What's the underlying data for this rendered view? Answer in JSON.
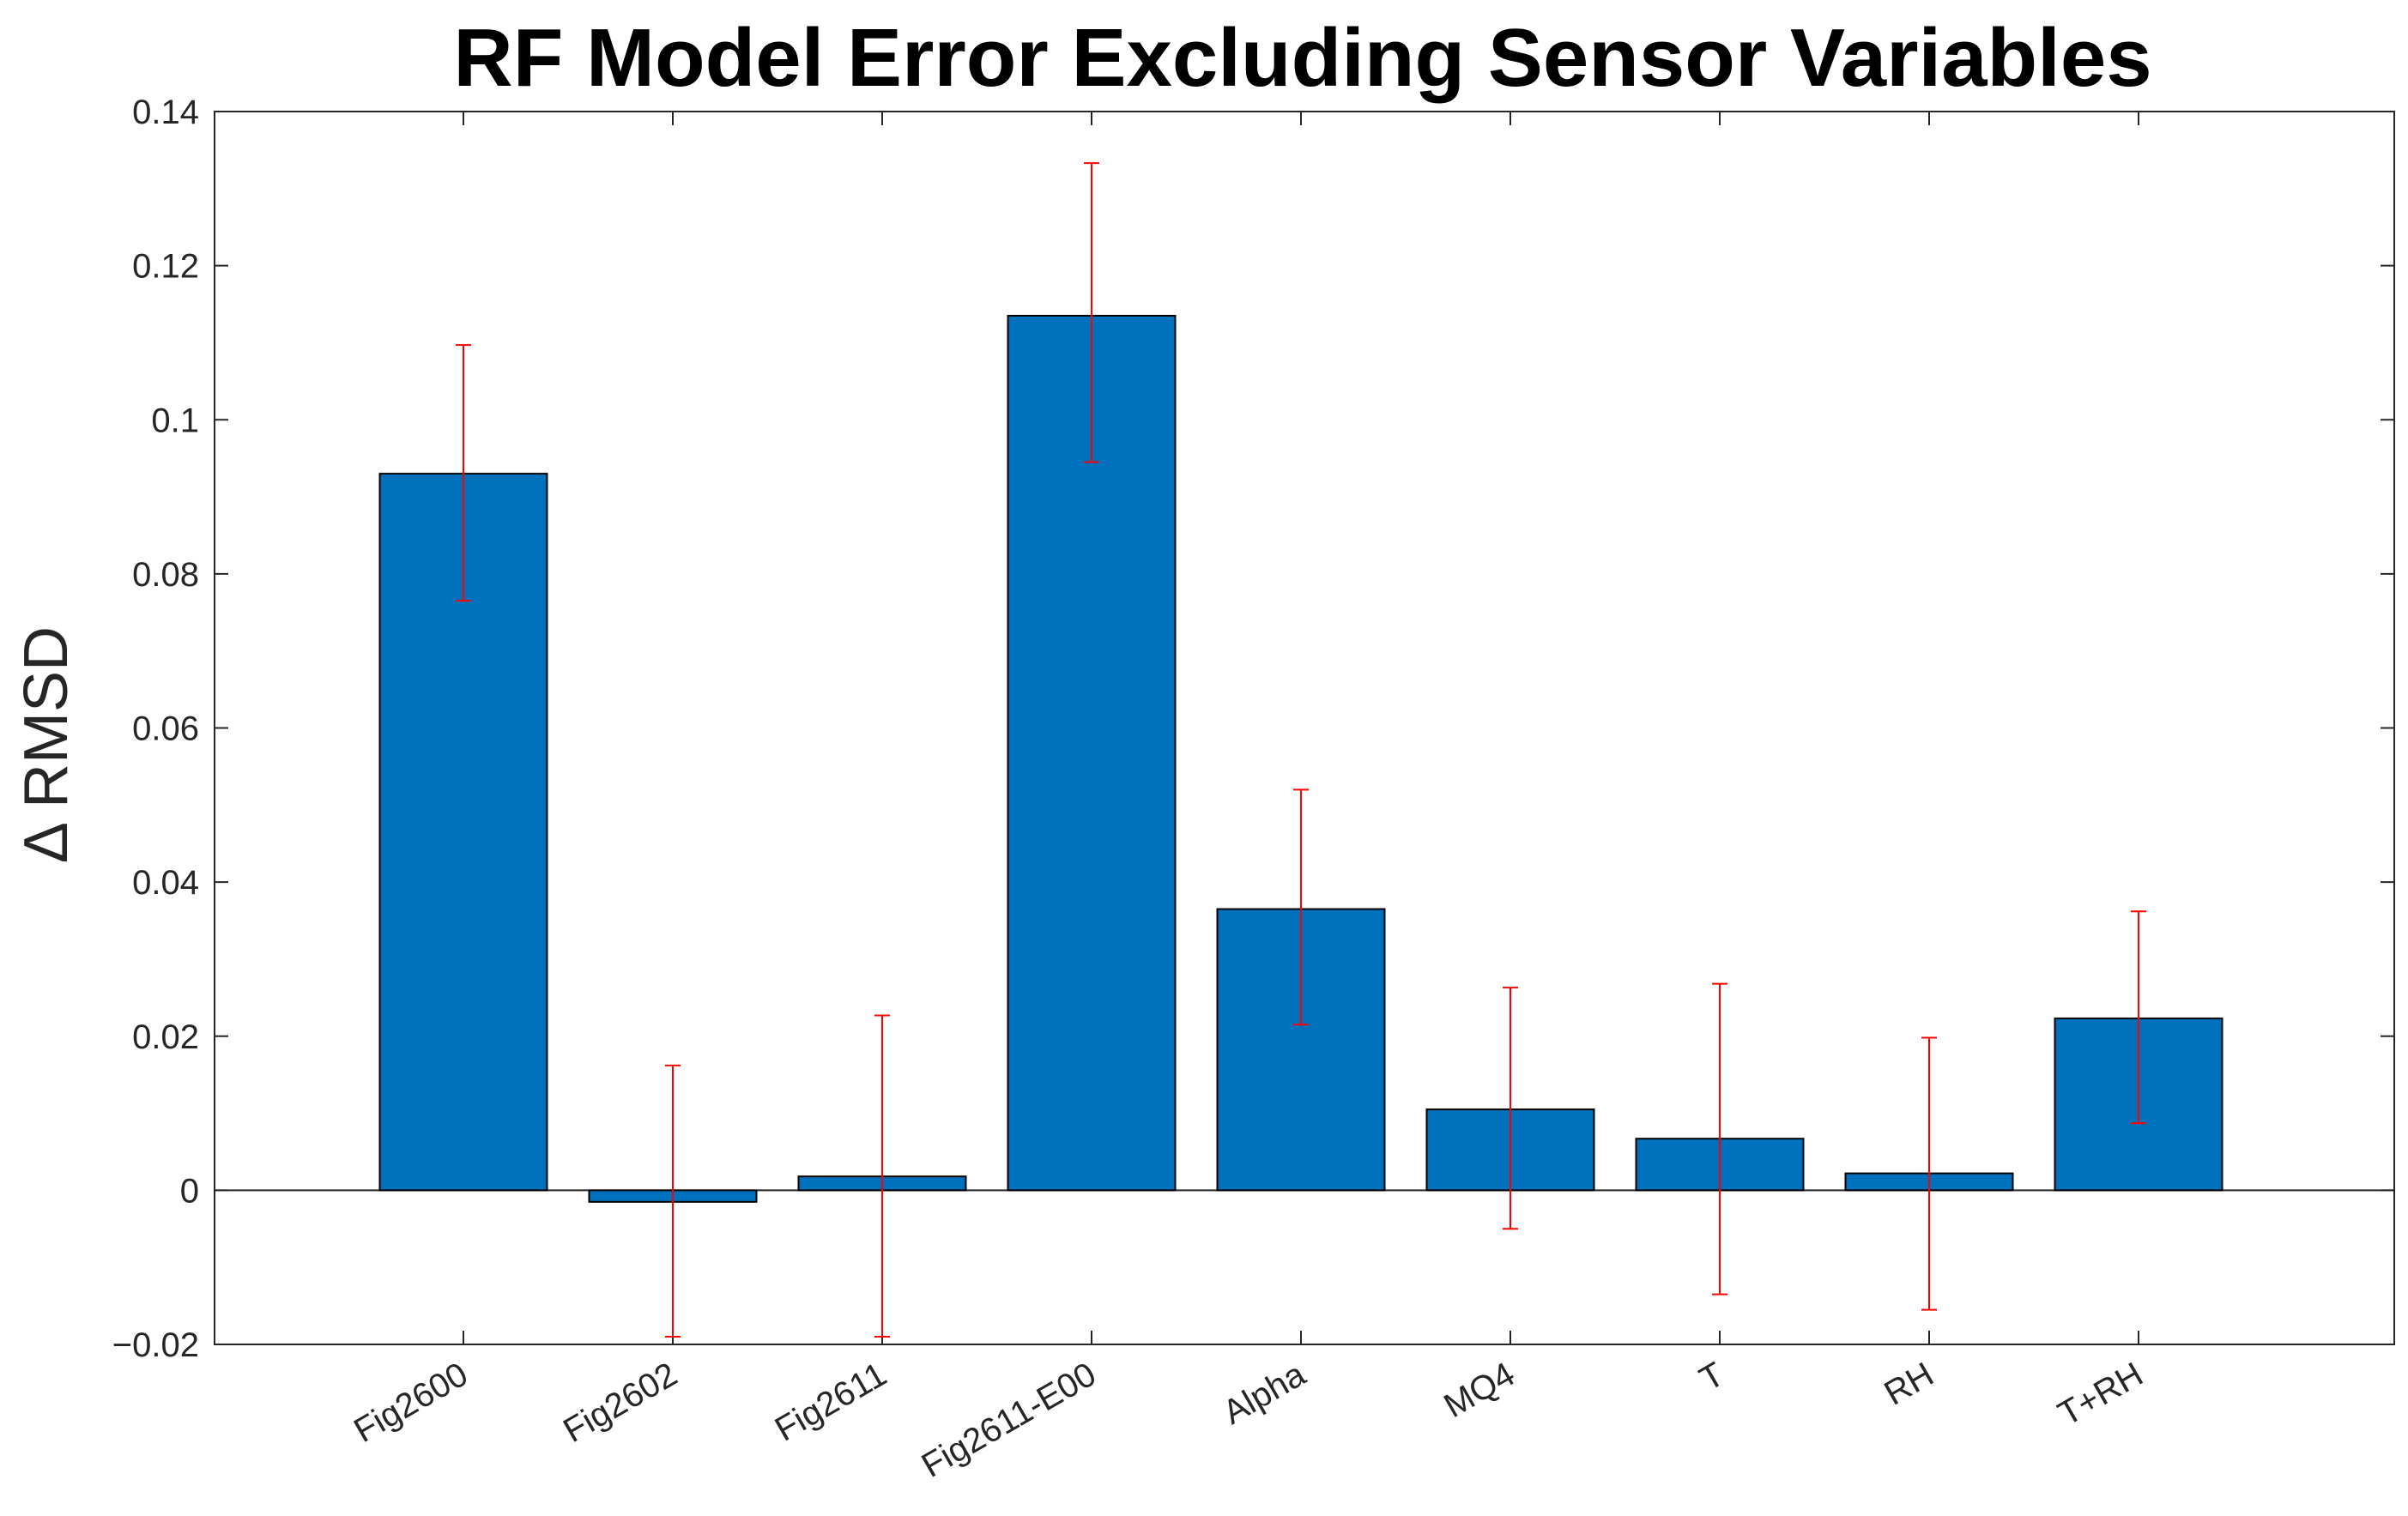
{
  "chart_data": {
    "type": "bar",
    "title": "RF Model Error Excluding Sensor Variables",
    "xlabel": "",
    "ylabel": "Δ RMSD",
    "categories": [
      "Fig2600",
      "Fig2602",
      "Fig2611",
      "Fig2611-E00",
      "Alpha",
      "MQ4",
      "T",
      "RH",
      "T+RH"
    ],
    "values": [
      0.093,
      -0.0015,
      0.0018,
      0.1135,
      0.0365,
      0.0105,
      0.0067,
      0.0022,
      0.0223
    ],
    "error_bars": {
      "lower": [
        0.0765,
        -0.019,
        -0.019,
        0.0945,
        0.0215,
        -0.005,
        -0.0135,
        -0.0155,
        0.0087
      ],
      "upper": [
        0.1097,
        0.0162,
        0.0227,
        0.1333,
        0.052,
        0.0263,
        0.0268,
        0.0198,
        0.0362
      ]
    },
    "ylim": [
      -0.02,
      0.14
    ],
    "yticks": [
      -0.02,
      0,
      0.02,
      0.04,
      0.06,
      0.08,
      0.1,
      0.12,
      0.14
    ],
    "ytick_labels": [
      "−0.02",
      "0",
      "0.02",
      "0.04",
      "0.06",
      "0.08",
      "0.1",
      "0.12",
      "0.14"
    ],
    "grid": false,
    "colors": {
      "bar": "#0072BD",
      "bar_edge": "#000000",
      "error": "#FF0000",
      "axis": "#262626"
    }
  }
}
